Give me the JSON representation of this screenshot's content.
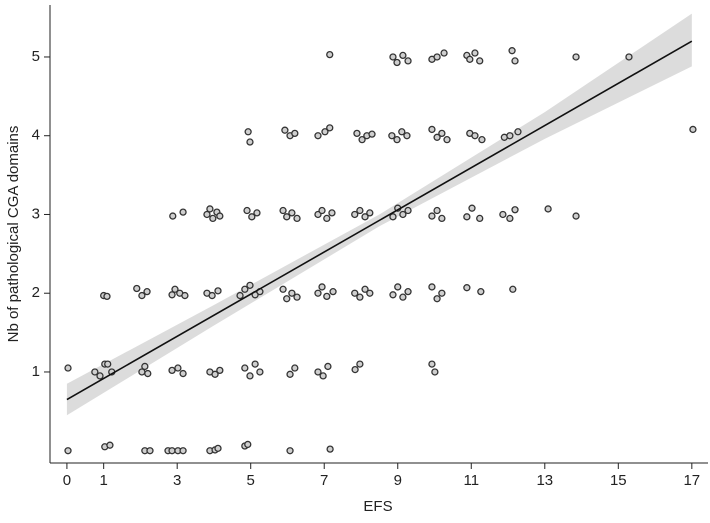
{
  "chart_data": {
    "type": "scatter",
    "x_label": "EFS",
    "y_label": "Nb of pathological CGA domains",
    "xlim": [
      -0.46,
      17.44
    ],
    "ylim": [
      -0.156,
      5.66
    ],
    "xticks": [
      0,
      1,
      3,
      5,
      7,
      9,
      11,
      13,
      15,
      17
    ],
    "yticks": [
      1,
      2,
      3,
      4,
      5
    ],
    "grid": false,
    "series": [
      {
        "color": "#cfcfcf",
        "edge_color": "#333333",
        "x": [
          0.03,
          1.03,
          1.17,
          2.12,
          2.26,
          2.75,
          2.86,
          3.02,
          3.16,
          3.89,
          4.03,
          4.11,
          4.84,
          4.92,
          6.07,
          7.16,
          0.03,
          0.76,
          0.9,
          1.03,
          1.11,
          1.22,
          2.04,
          2.12,
          2.2,
          2.86,
          3.02,
          3.16,
          3.89,
          4.03,
          4.16,
          4.84,
          4.98,
          5.12,
          5.25,
          6.07,
          6.2,
          6.83,
          6.97,
          7.1,
          7.84,
          7.97,
          9.93,
          10.01,
          1.0,
          1.09,
          1.9,
          2.04,
          2.18,
          2.86,
          2.94,
          3.07,
          3.21,
          3.81,
          3.95,
          4.11,
          4.71,
          4.84,
          4.98,
          5.12,
          5.25,
          5.88,
          5.98,
          6.12,
          6.26,
          6.83,
          6.94,
          7.07,
          7.24,
          7.83,
          7.97,
          8.11,
          8.24,
          8.87,
          9.0,
          9.14,
          9.28,
          9.93,
          10.07,
          10.2,
          10.88,
          11.26,
          12.13,
          2.88,
          3.16,
          3.81,
          3.89,
          3.97,
          4.08,
          4.16,
          4.9,
          5.03,
          5.17,
          5.88,
          5.98,
          6.12,
          6.26,
          6.83,
          6.94,
          7.07,
          7.21,
          7.83,
          7.97,
          8.11,
          8.24,
          8.87,
          9.0,
          9.14,
          9.28,
          9.93,
          10.07,
          10.2,
          10.88,
          11.02,
          11.23,
          11.86,
          12.05,
          12.19,
          13.09,
          13.85,
          4.93,
          4.98,
          5.93,
          6.07,
          6.2,
          6.83,
          7.02,
          7.15,
          7.89,
          8.03,
          8.16,
          8.3,
          8.84,
          8.98,
          9.11,
          9.25,
          9.93,
          10.07,
          10.2,
          10.34,
          10.96,
          11.1,
          11.29,
          11.9,
          12.05,
          12.27,
          17.03,
          7.15,
          8.87,
          8.98,
          9.14,
          9.28,
          9.93,
          10.07,
          10.26,
          10.88,
          10.96,
          11.1,
          11.23,
          12.11,
          12.19,
          13.85,
          15.29
        ],
        "values": [
          0,
          0.05,
          0.07,
          0,
          0,
          0,
          0,
          0,
          0,
          0,
          0.01,
          0.03,
          0.06,
          0.08,
          0,
          0.02,
          1.05,
          1.0,
          0.95,
          1.1,
          1.1,
          1.0,
          1.0,
          1.07,
          0.98,
          1.02,
          1.05,
          0.98,
          1.0,
          0.97,
          1.02,
          1.05,
          0.95,
          1.1,
          1.0,
          0.97,
          1.05,
          1.0,
          0.95,
          1.07,
          1.03,
          1.1,
          1.1,
          1.0,
          1.97,
          1.96,
          2.06,
          1.97,
          2.02,
          1.98,
          2.05,
          2.0,
          1.97,
          2.0,
          1.97,
          2.03,
          1.97,
          2.05,
          2.1,
          1.98,
          2.02,
          2.05,
          1.93,
          2.0,
          1.95,
          2.0,
          2.08,
          1.96,
          2.02,
          2.0,
          1.95,
          2.05,
          2.0,
          1.98,
          2.08,
          1.95,
          2.02,
          2.08,
          1.93,
          2.0,
          2.07,
          2.02,
          2.05,
          2.98,
          3.03,
          3.0,
          3.07,
          2.95,
          3.03,
          2.98,
          3.05,
          2.97,
          3.02,
          3.05,
          2.97,
          3.02,
          2.95,
          3.0,
          3.05,
          2.95,
          3.02,
          3.0,
          3.05,
          2.97,
          3.02,
          2.97,
          3.08,
          3.0,
          3.05,
          2.98,
          3.05,
          2.95,
          2.97,
          3.08,
          2.95,
          3.0,
          2.95,
          3.06,
          3.07,
          2.98,
          4.05,
          3.92,
          4.07,
          4.0,
          4.03,
          4.0,
          4.05,
          4.1,
          4.03,
          3.95,
          4.0,
          4.02,
          4.0,
          3.95,
          4.05,
          4.0,
          4.08,
          3.98,
          4.03,
          3.95,
          4.03,
          4.0,
          3.95,
          3.98,
          4.0,
          4.05,
          4.08,
          5.03,
          5.0,
          4.93,
          5.02,
          4.95,
          4.97,
          5.0,
          5.05,
          5.02,
          4.97,
          5.05,
          4.95,
          5.08,
          4.95,
          5.0,
          5.0
        ]
      }
    ],
    "fit": {
      "color": "#111111",
      "x": [
        0,
        17
      ],
      "values": [
        0.65,
        5.2
      ]
    },
    "band": {
      "color": "#dcdcdc",
      "x": [
        0,
        4,
        8.5,
        13,
        17
      ],
      "lower": [
        0.45,
        1.59,
        2.85,
        3.96,
        4.88
      ],
      "upper": [
        0.85,
        1.85,
        3.0,
        4.3,
        5.55
      ]
    }
  }
}
